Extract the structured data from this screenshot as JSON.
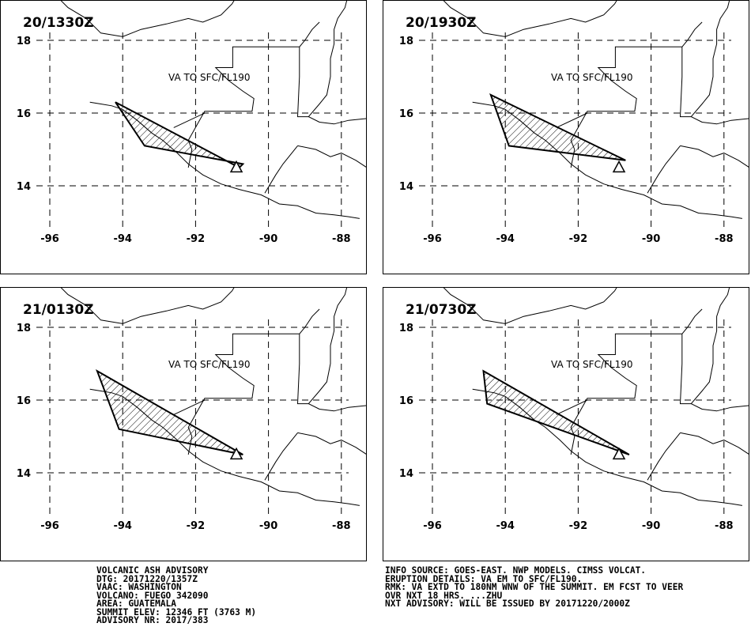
{
  "panels": [
    {
      "time": "20/1330Z",
      "label": "VA TO SFC/FL190",
      "polygon": [
        [
          -94.2,
          16.3
        ],
        [
          -93.4,
          15.1
        ],
        [
          -90.7,
          14.6
        ],
        [
          -90.8,
          14.5
        ],
        [
          -94.2,
          16.3
        ]
      ]
    },
    {
      "time": "20/1930Z",
      "label": "VA TO SFC/FL190",
      "polygon": [
        [
          -94.4,
          16.5
        ],
        [
          -93.9,
          15.1
        ],
        [
          -90.7,
          14.7
        ],
        [
          -94.4,
          16.5
        ]
      ]
    },
    {
      "time": "21/0130Z",
      "label": "VA TO SFC/FL190",
      "polygon": [
        [
          -94.7,
          16.8
        ],
        [
          -94.1,
          15.2
        ],
        [
          -90.7,
          14.5
        ],
        [
          -94.7,
          16.8
        ]
      ]
    },
    {
      "time": "21/0730Z",
      "label": "VA TO SFC/FL190",
      "polygon": [
        [
          -94.6,
          16.8
        ],
        [
          -94.5,
          15.9
        ],
        [
          -90.6,
          14.5
        ],
        [
          -94.6,
          16.8
        ]
      ]
    }
  ],
  "axes": {
    "lon_ticks": [
      "-96",
      "-94",
      "-92",
      "-90",
      "-88"
    ],
    "lat_ticks": [
      "18",
      "16",
      "14"
    ],
    "lon_values": [
      -96,
      -94,
      -92,
      -90,
      -88
    ],
    "lat_values": [
      18,
      16,
      14
    ]
  },
  "volcano": {
    "lon": -90.88,
    "lat": 14.47,
    "symbol": "volcano-triangle"
  },
  "footer_left": [
    "VOLCANIC ASH ADVISORY",
    "DTG: 20171220/1357Z",
    "VAAC: WASHINGTON",
    "VOLCANO: FUEGO 342090",
    "AREA: GUATEMALA",
    "SUMMIT ELEV: 12346 FT (3763 M)",
    "ADVISORY NR: 2017/383"
  ],
  "footer_right": [
    "INFO SOURCE: GOES-EAST. NWP MODELS. CIMSS VOLCAT.",
    "ERUPTION DETAILS: VA EM TO SFC/FL190.",
    "RMK: VA EXTD TO 180NM WNW OF THE SUMMIT. EM FCST TO VEER",
    "OVR NXT 18 HRS. ...ZHU",
    "NXT ADVISORY: WILL BE ISSUED BY 20171220/2000Z"
  ]
}
